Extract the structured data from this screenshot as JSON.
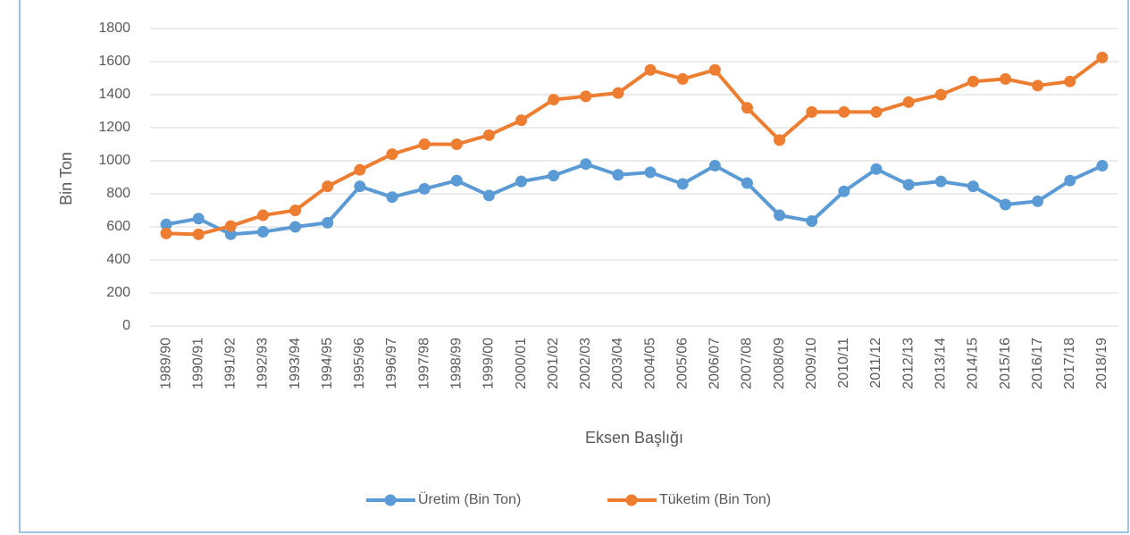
{
  "chart_data": {
    "type": "line",
    "x_label": "Eksen Başlığı",
    "y_label": "Bin Ton",
    "categories": [
      "1989/90",
      "1990/91",
      "1991/92",
      "1992/93",
      "1993/94",
      "1994/95",
      "1995/96",
      "1996/97",
      "1997/98",
      "1998/99",
      "1999/00",
      "2000/01",
      "2001/02",
      "2002/03",
      "2003/04",
      "2004/05",
      "2005/06",
      "2006/07",
      "2007/08",
      "2008/09",
      "2009/10",
      "2010/11",
      "2011/12",
      "2012/13",
      "2013/14",
      "2014/15",
      "2015/16",
      "2016/17",
      "2017/18",
      "2018/19"
    ],
    "series": [
      {
        "name": "Üretim (Bin Ton)",
        "color": "#5b9bd5",
        "values": [
          615,
          650,
          555,
          570,
          600,
          625,
          845,
          780,
          830,
          880,
          790,
          875,
          910,
          980,
          915,
          930,
          860,
          970,
          865,
          670,
          635,
          815,
          950,
          855,
          875,
          845,
          735,
          755,
          880,
          970
        ]
      },
      {
        "name": "Tüketim (Bin Ton)",
        "color": "#ed7d31",
        "values": [
          560,
          555,
          605,
          670,
          700,
          845,
          945,
          1040,
          1100,
          1100,
          1155,
          1245,
          1370,
          1390,
          1410,
          1550,
          1495,
          1550,
          1320,
          1125,
          1295,
          1295,
          1295,
          1355,
          1400,
          1480,
          1495,
          1455,
          1480,
          1625
        ]
      }
    ],
    "ylim": [
      0,
      1800
    ],
    "yticks": [
      0,
      200,
      400,
      600,
      800,
      1000,
      1200,
      1400,
      1600,
      1800
    ],
    "grid": true,
    "legend": "bottom"
  }
}
